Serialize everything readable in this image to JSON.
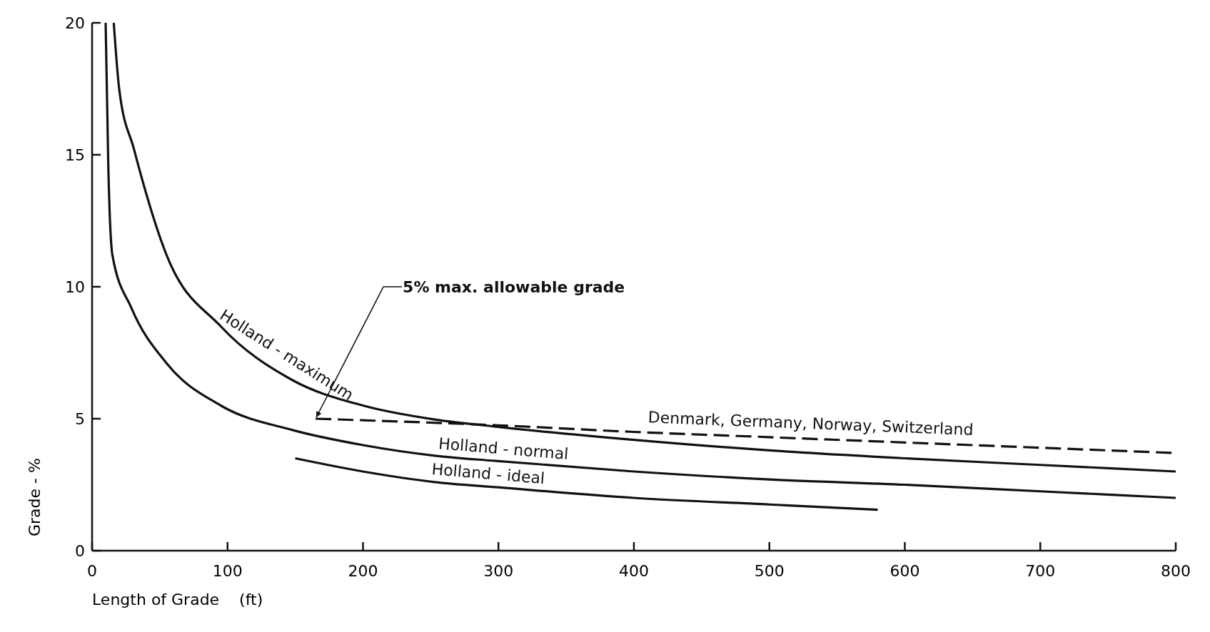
{
  "chart_data": {
    "type": "line",
    "xlabel": "Length of Grade    (ft)",
    "ylabel": "Grade - %",
    "xlim": [
      0,
      800
    ],
    "xticks": [
      0,
      100,
      200,
      300,
      400,
      500,
      600,
      700,
      800
    ],
    "ylim": [
      0,
      20
    ],
    "yticks": [
      0,
      5,
      10,
      15,
      20
    ],
    "grid": false,
    "marker": "none",
    "series": [
      {
        "name": "Holland - maximum",
        "color": "#111111",
        "x": [
          16,
          20,
          31,
          55,
          95,
          148,
          200,
          253,
          298,
          400,
          500,
          600,
          700,
          800
        ],
        "values": [
          20,
          17.5,
          15.2,
          11.2,
          8.5,
          6.46,
          5.5,
          4.97,
          4.7,
          4.2,
          3.8,
          3.5,
          3.25,
          3.0
        ]
      },
      {
        "name": "Holland - normal",
        "color": "#111111",
        "x": [
          10,
          12,
          15,
          29,
          55,
          95,
          148,
          200,
          253,
          298,
          400,
          500,
          600,
          700,
          800
        ],
        "values": [
          20,
          14.5,
          11.2,
          9.2,
          7.1,
          5.5,
          4.57,
          4.0,
          3.6,
          3.4,
          3.0,
          2.7,
          2.5,
          2.25,
          2.0
        ]
      },
      {
        "name": "Holland - ideal",
        "color": "#111111",
        "x": [
          150,
          200,
          253,
          300,
          400,
          500,
          580
        ],
        "values": [
          3.5,
          3.0,
          2.6,
          2.4,
          2.0,
          1.75,
          1.55
        ]
      },
      {
        "name": "Denmark, Germany, Norway, Switzerland",
        "color": "#111111",
        "line_style": "dashed",
        "x": [
          165,
          300,
          400,
          500,
          600,
          700,
          800
        ],
        "values": [
          5.0,
          4.75,
          4.5,
          4.3,
          4.1,
          3.9,
          3.7
        ]
      }
    ],
    "annotations": [
      {
        "text": "5% max. allowable grade",
        "x": 165,
        "y": 5
      }
    ]
  }
}
